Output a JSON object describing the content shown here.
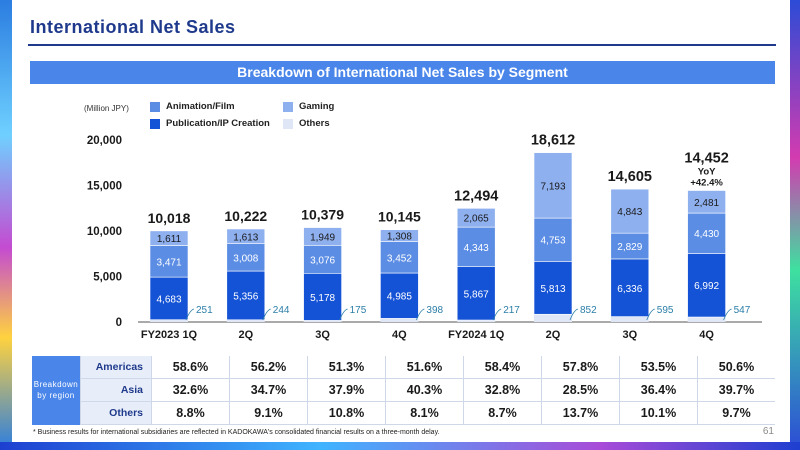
{
  "header": {
    "title": "International Net Sales",
    "banner": "Breakdown of International Net Sales by Segment",
    "unit": "(Million JPY)",
    "page_number": "61",
    "footnote": "* Business results for international subsidiaries are reflected in KADOKAWA's consolidated financial results on a three-month delay."
  },
  "legend": [
    {
      "label": "Animation/Film",
      "color": "#5b8de4"
    },
    {
      "label": "Publication/IP Creation",
      "color": "#1553d6"
    },
    {
      "label": "Gaming",
      "color": "#8fb0ef"
    },
    {
      "label": "Others",
      "color": "#dfe7f7"
    }
  ],
  "yoy": {
    "label": "YoY",
    "value": "+42.4%"
  },
  "chart_data": {
    "type": "bar",
    "stacked": true,
    "categories": [
      "FY2023 1Q",
      "2Q",
      "3Q",
      "4Q",
      "FY2024 1Q",
      "2Q",
      "3Q",
      "4Q"
    ],
    "ylim": [
      0,
      20000
    ],
    "yticks": [
      "0",
      "5,000",
      "10,000",
      "15,000",
      "20,000"
    ],
    "series": [
      {
        "name": "Publication/IP Creation",
        "color": "#1553d6",
        "text_color": "#ffffff",
        "values": [
          4683,
          5356,
          5178,
          4985,
          5867,
          5813,
          6336,
          6992
        ],
        "labels": [
          "4,683",
          "5,356",
          "5,178",
          "4,985",
          "5,867",
          "5,813",
          "6,336",
          "6,992"
        ]
      },
      {
        "name": "Animation/Film",
        "color": "#5b8de4",
        "text_color": "#ffffff",
        "values": [
          3471,
          3008,
          3076,
          3452,
          4343,
          4753,
          2829,
          4430
        ],
        "labels": [
          "3,471",
          "3,008",
          "3,076",
          "3,452",
          "4,343",
          "4,753",
          "2,829",
          "4,430"
        ]
      },
      {
        "name": "Gaming",
        "color": "#8fb0ef",
        "text_color": "#1a1a1a",
        "values": [
          1611,
          1613,
          1949,
          1308,
          2065,
          7193,
          4843,
          2481
        ],
        "labels": [
          "1,611",
          "1,613",
          "1,949",
          "1,308",
          "2,065",
          "7,193",
          "4,843",
          "2,481"
        ]
      },
      {
        "name": "Others",
        "color": "#dfe7f7",
        "text_color": "#2b7ea8",
        "values": [
          251,
          244,
          175,
          398,
          217,
          852,
          595,
          547
        ],
        "labels": [
          "251",
          "244",
          "175",
          "398",
          "217",
          "852",
          "595",
          "547"
        ]
      }
    ],
    "totals": [
      10018,
      10222,
      10379,
      10145,
      12494,
      18612,
      14605,
      14452
    ],
    "total_labels": [
      "10,018",
      "10,222",
      "10,379",
      "10,145",
      "12,494",
      "18,612",
      "14,605",
      "14,452"
    ]
  },
  "region_table": {
    "title": "Breakdown by region",
    "rows": [
      {
        "name": "Americas",
        "values": [
          "58.6%",
          "56.2%",
          "51.3%",
          "51.6%",
          "58.4%",
          "57.8%",
          "53.5%",
          "50.6%"
        ]
      },
      {
        "name": "Asia",
        "values": [
          "32.6%",
          "34.7%",
          "37.9%",
          "40.3%",
          "32.8%",
          "28.5%",
          "36.4%",
          "39.7%"
        ]
      },
      {
        "name": "Others",
        "values": [
          "8.8%",
          "9.1%",
          "10.8%",
          "8.1%",
          "8.7%",
          "13.7%",
          "10.1%",
          "9.7%"
        ]
      }
    ]
  }
}
